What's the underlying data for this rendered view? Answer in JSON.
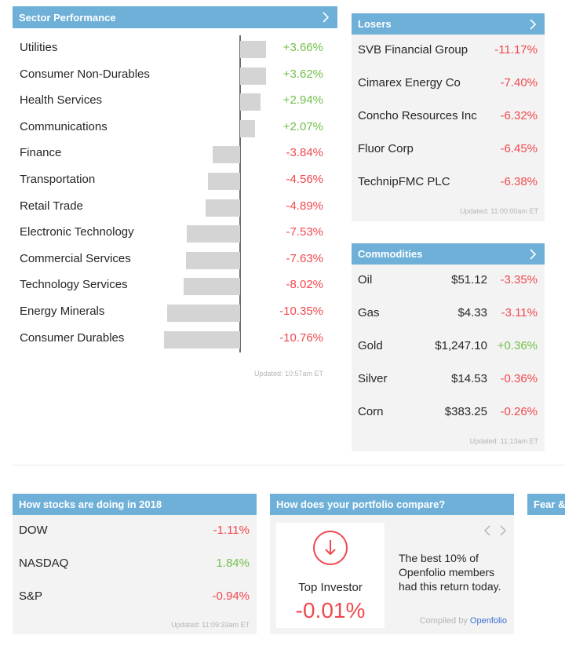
{
  "sector": {
    "title": "Sector Performance",
    "updated": "Updated: 10:57am ET",
    "items": [
      {
        "name": "Utilities",
        "value": "+3.66%",
        "change": 3.66
      },
      {
        "name": "Consumer Non-Durables",
        "value": "+3.62%",
        "change": 3.62
      },
      {
        "name": "Health Services",
        "value": "+2.94%",
        "change": 2.94
      },
      {
        "name": "Communications",
        "value": "+2.07%",
        "change": 2.07
      },
      {
        "name": "Finance",
        "value": "-3.84%",
        "change": -3.84
      },
      {
        "name": "Transportation",
        "value": "-4.56%",
        "change": -4.56
      },
      {
        "name": "Retail Trade",
        "value": "-4.89%",
        "change": -4.89
      },
      {
        "name": "Electronic Technology",
        "value": "-7.53%",
        "change": -7.53
      },
      {
        "name": "Commercial Services",
        "value": "-7.63%",
        "change": -7.63
      },
      {
        "name": "Technology Services",
        "value": "-8.02%",
        "change": -8.02
      },
      {
        "name": "Energy Minerals",
        "value": "-10.35%",
        "change": -10.35
      },
      {
        "name": "Consumer Durables",
        "value": "-10.76%",
        "change": -10.76
      }
    ]
  },
  "losers": {
    "title": "Losers",
    "updated": "Updated: 11:00:00am ET",
    "items": [
      {
        "name": "SVB Financial Group",
        "value": "-11.17%"
      },
      {
        "name": "Cimarex Energy Co",
        "value": "-7.40%"
      },
      {
        "name": "Concho Resources Inc",
        "value": "-6.32%"
      },
      {
        "name": "Fluor Corp",
        "value": "-6.45%"
      },
      {
        "name": "TechnipFMC PLC",
        "value": "-6.38%"
      }
    ]
  },
  "commodities": {
    "title": "Commodities",
    "updated": "Updated: 11:13am ET",
    "items": [
      {
        "name": "Oil",
        "price": "$51.12",
        "value": "-3.35%"
      },
      {
        "name": "Gas",
        "price": "$4.33",
        "value": "-3.11%"
      },
      {
        "name": "Gold",
        "price": "$1,247.10",
        "value": "+0.36%"
      },
      {
        "name": "Silver",
        "price": "$14.53",
        "value": "-0.36%"
      },
      {
        "name": "Corn",
        "price": "$383.25",
        "value": "-0.26%"
      }
    ]
  },
  "stocks2018": {
    "title": "How stocks are doing in 2018",
    "updated": "Updated: 11:09:33am ET",
    "items": [
      {
        "name": "DOW",
        "value": "-1.11%"
      },
      {
        "name": "NASDAQ",
        "value": "1.84%"
      },
      {
        "name": "S&P",
        "value": "-0.94%"
      }
    ]
  },
  "portfolio": {
    "title": "How does your portfolio compare?",
    "card_label": "Top Investor",
    "card_value": "-0.01%",
    "description": "The best 10% of Openfolio members had this return today.",
    "compiled_prefix": "Complied by",
    "compiled_brand": "Openfolio"
  },
  "fear": {
    "title": "Fear & Greed"
  },
  "colors": {
    "header": "#6fb0d8",
    "positive": "#72c04a",
    "negative": "#f0484f",
    "bar": "#d4d4d4",
    "panel": "#f3f3f3"
  },
  "icons": {
    "chevron": "chevron-right-icon",
    "down": "down-arrow-icon",
    "prev": "chevron-left-icon",
    "next": "chevron-right-icon"
  }
}
